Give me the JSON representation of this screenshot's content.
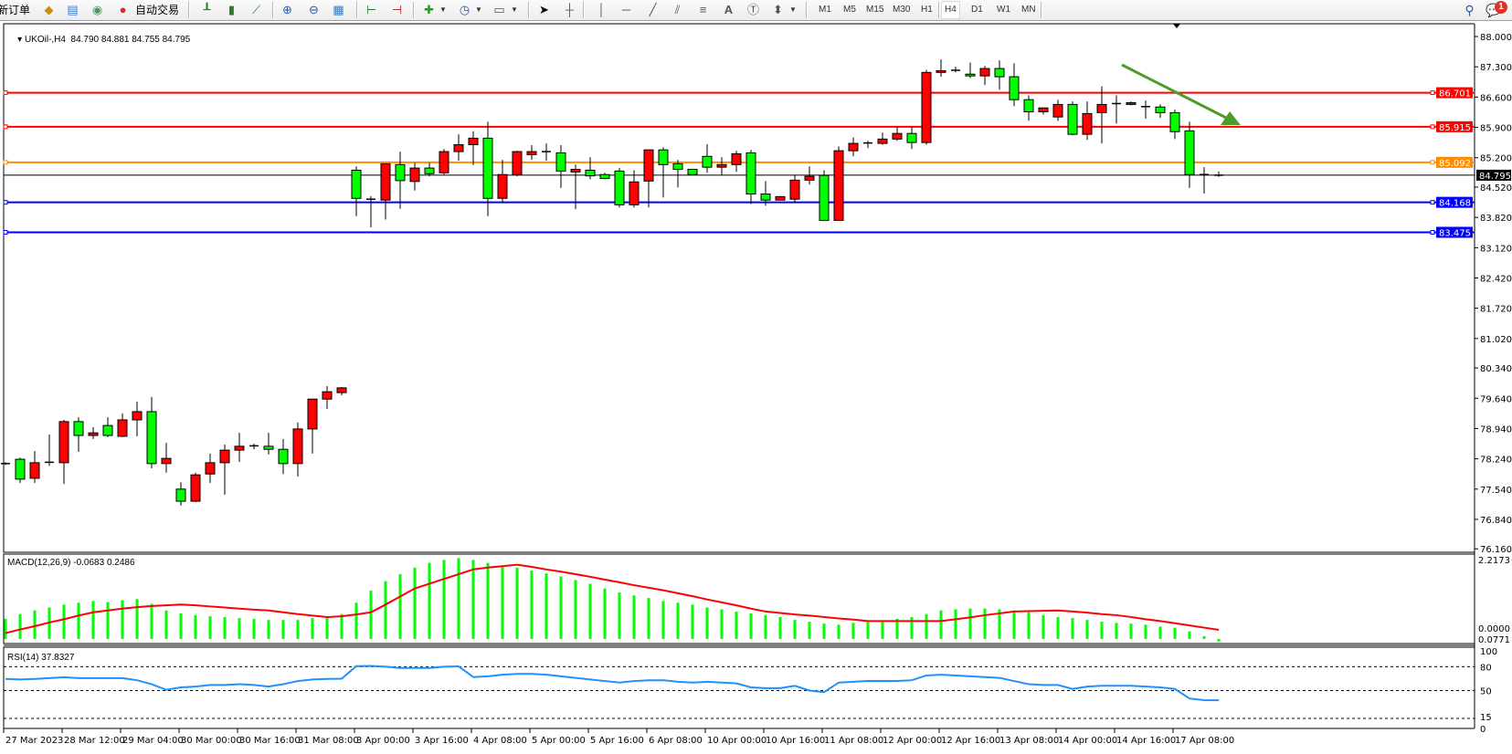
{
  "toolbar": {
    "new_order": "新订单",
    "auto_trading": "自动交易",
    "timeframes": [
      "M1",
      "M5",
      "M15",
      "M30",
      "H1",
      "H4",
      "D1",
      "W1",
      "MN"
    ],
    "active_timeframe": "H4",
    "notification_count": "1",
    "icons": [
      "market-watch-icon",
      "terminal-icon",
      "signals-icon",
      "auto-trading-icon",
      "bar-chart-icon",
      "candlestick-chart-icon",
      "line-chart-icon",
      "zoom-in-icon",
      "zoom-out-icon",
      "tile-windows-icon",
      "auto-scroll-icon",
      "chart-shift-icon",
      "indicators-icon",
      "periods-icon",
      "templates-icon",
      "cursor-icon",
      "crosshair-icon",
      "vertical-line-icon",
      "horizontal-line-icon",
      "trendline-icon",
      "equidistant-channel-icon",
      "fibonacci-icon",
      "text-icon",
      "text-label-icon",
      "arrows-icon",
      "search-icon",
      "notifications-icon"
    ]
  },
  "chart": {
    "symbol": "UKOil-,H4",
    "ohlc": "84.790 84.881 84.755 84.795"
  },
  "chart_data": {
    "type": "candlestick",
    "fields": [
      "open",
      "high",
      "low",
      "close"
    ],
    "up_color": "#ff0000",
    "down_color": "#00ff00",
    "candles": [
      [
        78.13,
        78.16,
        78.1,
        78.13
      ],
      [
        78.23,
        78.27,
        77.68,
        77.77
      ],
      [
        77.79,
        78.42,
        77.68,
        78.15
      ],
      [
        78.15,
        78.8,
        78.08,
        78.16
      ],
      [
        78.15,
        79.14,
        77.66,
        79.1
      ],
      [
        79.1,
        79.2,
        78.4,
        78.78
      ],
      [
        78.78,
        78.97,
        78.7,
        78.84
      ],
      [
        79.01,
        79.2,
        78.74,
        78.78
      ],
      [
        78.76,
        79.29,
        78.74,
        79.14
      ],
      [
        79.14,
        79.56,
        78.76,
        79.33
      ],
      [
        79.33,
        79.67,
        78.02,
        78.13
      ],
      [
        78.13,
        78.61,
        77.92,
        78.25
      ],
      [
        77.54,
        77.7,
        77.16,
        77.26
      ],
      [
        77.26,
        77.92,
        77.24,
        77.87
      ],
      [
        77.89,
        78.36,
        77.68,
        78.15
      ],
      [
        78.15,
        78.57,
        77.41,
        78.44
      ],
      [
        78.44,
        78.84,
        78.17,
        78.53
      ],
      [
        78.53,
        78.59,
        78.46,
        78.54
      ],
      [
        78.53,
        78.84,
        78.34,
        78.46
      ],
      [
        78.46,
        78.7,
        77.89,
        78.13
      ],
      [
        78.13,
        79.08,
        77.83,
        78.93
      ],
      [
        78.93,
        79.62,
        78.36,
        79.62
      ],
      [
        79.62,
        79.92,
        79.39,
        79.79
      ],
      [
        79.77,
        79.9,
        79.71,
        79.88
      ],
      [
        84.91,
        85.0,
        83.85,
        84.26
      ],
      [
        84.23,
        84.31,
        83.59,
        84.24
      ],
      [
        84.22,
        85.06,
        83.77,
        85.06
      ],
      [
        85.04,
        85.34,
        84.02,
        84.67
      ],
      [
        84.65,
        85.08,
        84.44,
        84.96
      ],
      [
        84.96,
        85.08,
        84.77,
        84.83
      ],
      [
        84.85,
        85.4,
        84.81,
        85.34
      ],
      [
        85.34,
        85.74,
        85.13,
        85.5
      ],
      [
        85.5,
        85.81,
        85.03,
        85.65
      ],
      [
        85.65,
        86.03,
        83.85,
        84.26
      ],
      [
        84.26,
        85.15,
        84.15,
        84.81
      ],
      [
        84.81,
        85.36,
        84.77,
        85.34
      ],
      [
        85.27,
        85.49,
        85.15,
        85.34
      ],
      [
        85.33,
        85.53,
        85.13,
        85.34
      ],
      [
        85.31,
        85.49,
        84.5,
        84.89
      ],
      [
        84.87,
        85.04,
        84.01,
        84.93
      ],
      [
        84.91,
        85.21,
        84.7,
        84.78
      ],
      [
        84.81,
        84.85,
        84.7,
        84.72
      ],
      [
        84.89,
        84.96,
        84.05,
        84.11
      ],
      [
        84.11,
        84.91,
        84.05,
        84.64
      ],
      [
        84.66,
        85.38,
        84.05,
        85.38
      ],
      [
        85.38,
        85.44,
        84.28,
        85.04
      ],
      [
        85.06,
        85.15,
        84.51,
        84.93
      ],
      [
        84.93,
        84.94,
        84.8,
        84.81
      ],
      [
        85.23,
        85.51,
        84.85,
        84.98
      ],
      [
        84.98,
        85.21,
        84.79,
        85.04
      ],
      [
        85.04,
        85.36,
        84.87,
        85.29
      ],
      [
        85.31,
        85.38,
        84.13,
        84.36
      ],
      [
        84.36,
        84.66,
        84.09,
        84.22
      ],
      [
        84.22,
        84.31,
        84.21,
        84.3
      ],
      [
        84.24,
        84.81,
        84.15,
        84.68
      ],
      [
        84.68,
        85.0,
        84.58,
        84.77
      ],
      [
        84.79,
        84.91,
        83.75,
        83.75
      ],
      [
        83.75,
        85.46,
        83.75,
        85.36
      ],
      [
        85.36,
        85.67,
        85.23,
        85.53
      ],
      [
        85.53,
        85.59,
        85.42,
        85.54
      ],
      [
        85.53,
        85.78,
        85.5,
        85.63
      ],
      [
        85.63,
        85.91,
        85.59,
        85.76
      ],
      [
        85.76,
        85.91,
        85.4,
        85.55
      ],
      [
        85.55,
        87.23,
        85.5,
        87.17
      ],
      [
        87.17,
        87.47,
        87.07,
        87.21
      ],
      [
        87.22,
        87.3,
        87.17,
        87.22
      ],
      [
        87.13,
        87.4,
        87.04,
        87.09
      ],
      [
        87.09,
        87.32,
        86.88,
        87.26
      ],
      [
        87.26,
        87.45,
        86.77,
        87.07
      ],
      [
        87.07,
        87.38,
        86.39,
        86.54
      ],
      [
        86.54,
        86.64,
        86.05,
        86.26
      ],
      [
        86.26,
        86.35,
        86.2,
        86.35
      ],
      [
        86.14,
        86.54,
        86.05,
        86.43
      ],
      [
        86.43,
        86.5,
        85.72,
        85.74
      ],
      [
        85.74,
        86.5,
        85.61,
        86.22
      ],
      [
        86.24,
        86.85,
        85.53,
        86.43
      ],
      [
        86.45,
        86.64,
        85.99,
        86.45
      ],
      [
        86.43,
        86.5,
        86.41,
        86.47
      ],
      [
        86.38,
        86.52,
        86.1,
        86.38
      ],
      [
        86.37,
        86.43,
        86.12,
        86.24
      ],
      [
        86.24,
        86.31,
        85.63,
        85.8
      ],
      [
        85.82,
        86.03,
        84.5,
        84.81
      ],
      [
        84.81,
        84.98,
        84.37,
        84.8
      ],
      [
        84.79,
        84.881,
        84.755,
        84.795
      ]
    ],
    "ylim": [
      76.16,
      88.0
    ],
    "price_ticks": [
      "88.000",
      "87.300",
      "86.600",
      "85.900",
      "85.200",
      "84.520",
      "83.820",
      "83.120",
      "82.420",
      "81.720",
      "81.020",
      "80.340",
      "79.640",
      "78.940",
      "78.240",
      "77.540",
      "76.840",
      "76.160"
    ],
    "time_labels": [
      "27 Mar 2023",
      "28 Mar 12:00",
      "29 Mar 04:00",
      "30 Mar 00:00",
      "30 Mar 16:00",
      "31 Mar 08:00",
      "3 Apr 00:00",
      "3 Apr 16:00",
      "4 Apr 08:00",
      "5 Apr 00:00",
      "5 Apr 16:00",
      "6 Apr 08:00",
      "10 Apr 00:00",
      "10 Apr 16:00",
      "11 Apr 08:00",
      "12 Apr 00:00",
      "12 Apr 16:00",
      "13 Apr 08:00",
      "14 Apr 00:00",
      "14 Apr 16:00",
      "17 Apr 08:00"
    ],
    "horizontal_lines": [
      {
        "price": 86.701,
        "label": "86.701",
        "color": "#ff0000"
      },
      {
        "price": 85.915,
        "label": "85.915",
        "color": "#ff0000"
      },
      {
        "price": 85.092,
        "label": "85.092",
        "color": "#ff8c00"
      },
      {
        "price": 84.168,
        "label": "84.168",
        "color": "#0000ff"
      },
      {
        "price": 83.475,
        "label": "83.475",
        "color": "#0000ff"
      }
    ],
    "current_price": {
      "price": 84.795,
      "label": "84.795",
      "color": "#000000"
    },
    "annotation_arrow": {
      "color": "#4f9a2c",
      "direction": "down-right"
    },
    "macd": {
      "title": "MACD(12,26,9) -0.0683 0.2486",
      "axis_labels": [
        "2.2173",
        "0.0000",
        "0.0771"
      ],
      "histogram_color": "#00ff00",
      "signal_color": "#ff0000",
      "histogram": [
        0.55,
        0.68,
        0.78,
        0.86,
        0.94,
        0.99,
        1.04,
        1.01,
        1.06,
        1.09,
        0.96,
        0.78,
        0.7,
        0.65,
        0.62,
        0.6,
        0.57,
        0.55,
        0.52,
        0.52,
        0.52,
        0.57,
        0.62,
        0.68,
        0.99,
        1.32,
        1.58,
        1.77,
        1.95,
        2.08,
        2.16,
        2.21,
        2.16,
        2.08,
        2.0,
        1.95,
        1.87,
        1.79,
        1.71,
        1.61,
        1.51,
        1.38,
        1.27,
        1.19,
        1.12,
        1.04,
        0.99,
        0.94,
        0.86,
        0.81,
        0.75,
        0.7,
        0.65,
        0.6,
        0.52,
        0.47,
        0.42,
        0.39,
        0.44,
        0.47,
        0.49,
        0.55,
        0.6,
        0.68,
        0.78,
        0.81,
        0.83,
        0.83,
        0.81,
        0.78,
        0.73,
        0.65,
        0.6,
        0.57,
        0.52,
        0.47,
        0.44,
        0.42,
        0.39,
        0.34,
        0.31,
        0.21,
        0.08,
        -0.0683
      ],
      "signal": [
        0.16,
        0.26,
        0.35,
        0.45,
        0.54,
        0.64,
        0.73,
        0.78,
        0.83,
        0.87,
        0.9,
        0.92,
        0.94,
        0.92,
        0.89,
        0.86,
        0.83,
        0.8,
        0.78,
        0.73,
        0.68,
        0.64,
        0.6,
        0.62,
        0.67,
        0.73,
        0.94,
        1.16,
        1.38,
        1.51,
        1.64,
        1.77,
        1.9,
        1.95,
        1.99,
        2.03,
        1.97,
        1.9,
        1.84,
        1.77,
        1.7,
        1.62,
        1.55,
        1.47,
        1.4,
        1.33,
        1.25,
        1.17,
        1.08,
        1.0,
        0.92,
        0.83,
        0.75,
        0.71,
        0.67,
        0.64,
        0.6,
        0.56,
        0.53,
        0.49,
        0.49,
        0.49,
        0.49,
        0.49,
        0.49,
        0.54,
        0.59,
        0.65,
        0.7,
        0.75,
        0.76,
        0.77,
        0.78,
        0.75,
        0.72,
        0.68,
        0.65,
        0.6,
        0.54,
        0.49,
        0.43,
        0.37,
        0.31,
        0.2486
      ]
    },
    "rsi": {
      "title": "RSI(14) 37.8327",
      "axis_labels": [
        "100",
        "80",
        "50",
        "15",
        "0"
      ],
      "levels": [
        80,
        50,
        15
      ],
      "line_color": "#1e90ff",
      "values": [
        64.6,
        64,
        64.6,
        65.7,
        66.8,
        65.7,
        65.7,
        65.7,
        65.7,
        63,
        58,
        51,
        54,
        55,
        57,
        57,
        58,
        57,
        55,
        58,
        62,
        64,
        64.6,
        65,
        80.7,
        81,
        80,
        78.5,
        78.5,
        78.5,
        80,
        80.5,
        67,
        68,
        70,
        71,
        71,
        70,
        68,
        66,
        64,
        62,
        60,
        62,
        63,
        63,
        61,
        60,
        61,
        60,
        59,
        54,
        53,
        53,
        56,
        50,
        48,
        60,
        61,
        62,
        62,
        62,
        63,
        69,
        70,
        69,
        68,
        67,
        66,
        62,
        58,
        57,
        57,
        52,
        55,
        56,
        56,
        56,
        55,
        54,
        52,
        40,
        38,
        37.8327
      ]
    }
  }
}
